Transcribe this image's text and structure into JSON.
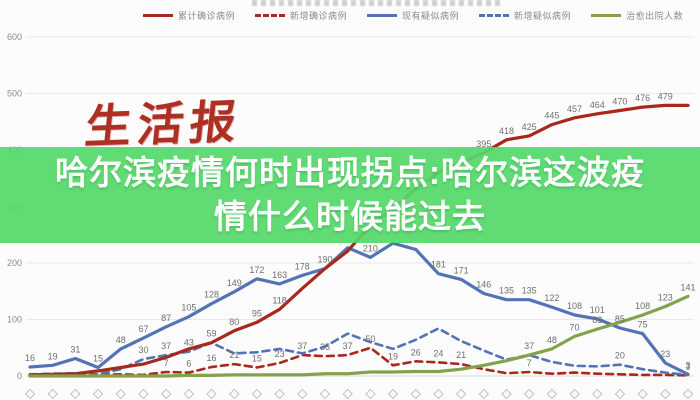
{
  "overlay": {
    "line1": "哈尔滨疫情何时出现拐点:哈尔滨这波疫",
    "line2": "情什么时候能过去",
    "background_color": "#56d86a",
    "text_color": "#ffffff"
  },
  "watermark": {
    "text": "生活报",
    "color": "#ae2f24"
  },
  "colors": {
    "confirmed_red": "#a8281c",
    "suspected_blue": "#5274b5",
    "cured_green": "#84a24d",
    "grid": "#e9e9e9",
    "axis_text": "#8a8a8a",
    "data_label": "#6e6e6e"
  },
  "chart_data": {
    "type": "line",
    "title": "",
    "xlabel": "",
    "ylabel": "",
    "ylim": [
      0,
      600
    ],
    "y_ticks": [
      0,
      100,
      200,
      300,
      400,
      500,
      600
    ],
    "grid": true,
    "legend_position": "top",
    "x_point_count": 30,
    "x_tick_glyph": "◇",
    "series": [
      {
        "name": "累计确诊病例",
        "key": "cumulative-confirmed",
        "color": "#a8281c",
        "dash": "none",
        "values": [
          2,
          3,
          4,
          9,
          15,
          21,
          33,
          48,
          59,
          80,
          95,
          118,
          155,
          190,
          221,
          267,
          295,
          331,
          360,
          378,
          395,
          418,
          425,
          445,
          457,
          464,
          470,
          476,
          479,
          479
        ],
        "labels": [
          null,
          null,
          null,
          null,
          null,
          null,
          null,
          null,
          null,
          "80",
          "95",
          "118",
          null,
          null,
          null,
          null,
          null,
          null,
          null,
          "378",
          "395",
          "418",
          "425",
          "445",
          "457",
          "464",
          "470",
          "476",
          "479",
          null
        ]
      },
      {
        "name": "新增确诊病例",
        "key": "new-confirmed",
        "color": "#a8281c",
        "dash": "dashed",
        "values": [
          1,
          3,
          1,
          2,
          3,
          2,
          7,
          6,
          16,
          21,
          15,
          23,
          37,
          35,
          37,
          50,
          19,
          26,
          24,
          21,
          12,
          5,
          7,
          4,
          6,
          4,
          3,
          2,
          2,
          1
        ],
        "labels": [
          null,
          null,
          null,
          null,
          null,
          null,
          "7",
          "6",
          "16",
          "21",
          "15",
          "23",
          "37",
          "35",
          "37",
          "50",
          "19",
          "26",
          "24",
          "21",
          null,
          null,
          "7",
          null,
          null,
          null,
          null,
          null,
          null,
          "1"
        ]
      },
      {
        "name": "现有疑似病例",
        "key": "existing-suspected",
        "color": "#5274b5",
        "dash": "none",
        "values": [
          16,
          19,
          31,
          15,
          48,
          67,
          87,
          105,
          128,
          149,
          172,
          163,
          178,
          190,
          227,
          210,
          235,
          224,
          181,
          171,
          146,
          135,
          135,
          122,
          108,
          101,
          85,
          75,
          23,
          3
        ],
        "labels": [
          "16",
          "19",
          "31",
          "15",
          "48",
          "67",
          "87",
          "105",
          "128",
          "149",
          "172",
          "163",
          "178",
          "190",
          null,
          "210",
          null,
          null,
          "181",
          "171",
          "146",
          "135",
          "135",
          "122",
          "108",
          "101",
          "85",
          "75",
          "23",
          "3"
        ]
      },
      {
        "name": "新增疑似病例",
        "key": "new-suspected",
        "color": "#5274b5",
        "dash": "dashed",
        "values": [
          3,
          4,
          5,
          3,
          12,
          30,
          37,
          43,
          59,
          40,
          42,
          48,
          40,
          52,
          75,
          60,
          48,
          64,
          84,
          62,
          45,
          29,
          37,
          25,
          18,
          17,
          20,
          12,
          6,
          2
        ],
        "labels": [
          null,
          null,
          null,
          null,
          null,
          "30",
          "37",
          "43",
          "59",
          null,
          null,
          null,
          null,
          null,
          null,
          null,
          null,
          null,
          null,
          null,
          null,
          null,
          "37",
          null,
          null,
          null,
          "20",
          null,
          null,
          null
        ]
      },
      {
        "name": "治愈出院人数",
        "key": "cured-discharged",
        "color": "#84a24d",
        "dash": "none",
        "values": [
          0,
          0,
          0,
          0,
          0,
          0,
          0,
          1,
          1,
          2,
          2,
          2,
          2,
          4,
          4,
          7,
          7,
          8,
          8,
          12,
          19,
          27,
          37,
          48,
          70,
          83,
          95,
          108,
          123,
          141
        ],
        "labels": [
          null,
          null,
          null,
          null,
          null,
          null,
          null,
          null,
          null,
          null,
          null,
          null,
          null,
          null,
          null,
          null,
          null,
          null,
          null,
          null,
          null,
          null,
          null,
          "48",
          "70",
          "83",
          null,
          "108",
          "123",
          "141"
        ]
      }
    ]
  }
}
